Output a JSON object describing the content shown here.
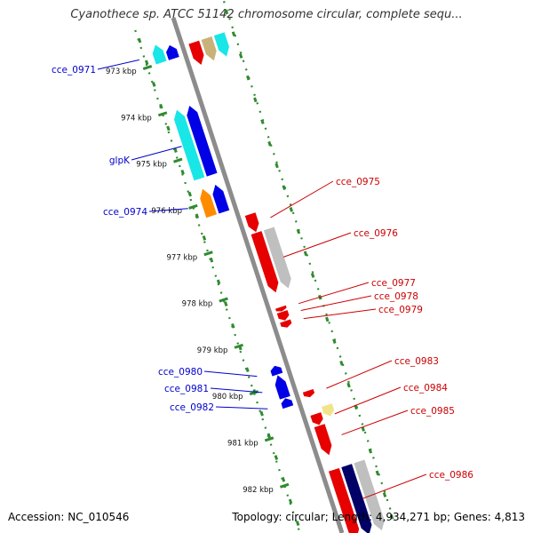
{
  "header": {
    "title": "Cyanothece sp. ATCC 51142 chromosome circular, complete sequ..."
  },
  "footer": {
    "accession": "Accession: NC_010546",
    "topology": "Topology: circular; Length: 4,934,271 bp; Genes: 4,813"
  },
  "colors": {
    "axis_line": "#8c8c8c",
    "track_dots": "#2e8b2e",
    "left_label": "#0000cc",
    "right_label": "#cc0000",
    "cyan": "#19e6e6",
    "blue": "#0000e6",
    "navy": "#000066",
    "red": "#e60000",
    "orange": "#ff8c00",
    "gray": "#bfbfbf",
    "tan": "#c8b27a",
    "khaki": "#f0e38a"
  },
  "scale": {
    "ticks": [
      {
        "kbp": 973,
        "label": "973 kbp"
      },
      {
        "kbp": 974,
        "label": "974 kbp"
      },
      {
        "kbp": 975,
        "label": "975 kbp"
      },
      {
        "kbp": 976,
        "label": "976 kbp"
      },
      {
        "kbp": 977,
        "label": "977 kbp"
      },
      {
        "kbp": 978,
        "label": "978 kbp"
      },
      {
        "kbp": 979,
        "label": "979 kbp"
      },
      {
        "kbp": 980,
        "label": "980 kbp"
      },
      {
        "kbp": 981,
        "label": "981 kbp"
      },
      {
        "kbp": 982,
        "label": "982 kbp"
      }
    ]
  },
  "genes_left": [
    {
      "label": "cce_0971",
      "kbp_start": 972.6,
      "kbp_end": 973.0,
      "color": "cyan",
      "lane": 2
    },
    {
      "label": "",
      "kbp_start": 972.7,
      "kbp_end": 973.0,
      "color": "blue",
      "lane": 1
    },
    {
      "label": "",
      "kbp_start": 974.0,
      "kbp_end": 975.5,
      "color": "cyan",
      "lane": 2
    },
    {
      "label": "glpK",
      "kbp_start": 974.0,
      "kbp_end": 975.5,
      "color": "blue",
      "lane": 1
    },
    {
      "label": "cce_0974",
      "kbp_start": 975.7,
      "kbp_end": 976.3,
      "color": "orange",
      "lane": 2
    },
    {
      "label": "",
      "kbp_start": 975.7,
      "kbp_end": 976.3,
      "color": "blue",
      "lane": 1
    },
    {
      "label": "cce_0980",
      "kbp_start": 979.6,
      "kbp_end": 979.8,
      "color": "blue",
      "lane": 1
    },
    {
      "label": "cce_0981",
      "kbp_start": 979.8,
      "kbp_end": 980.3,
      "color": "blue",
      "lane": 1
    },
    {
      "label": "cce_0982",
      "kbp_start": 980.3,
      "kbp_end": 980.5,
      "color": "blue",
      "lane": 1
    }
  ],
  "genes_right": [
    {
      "label": "",
      "kbp_start": 972.8,
      "kbp_end": 973.3,
      "color": "red",
      "lane": 1
    },
    {
      "label": "",
      "kbp_start": 972.8,
      "kbp_end": 973.3,
      "color": "tan",
      "lane": 2
    },
    {
      "label": "",
      "kbp_start": 972.8,
      "kbp_end": 973.3,
      "color": "cyan",
      "lane": 3
    },
    {
      "label": "cce_0975",
      "kbp_start": 976.5,
      "kbp_end": 976.9,
      "color": "red",
      "lane": 1
    },
    {
      "label": "cce_0976",
      "kbp_start": 976.9,
      "kbp_end": 978.2,
      "color": "red",
      "lane": 1
    },
    {
      "label": "",
      "kbp_start": 976.9,
      "kbp_end": 978.2,
      "color": "gray",
      "lane": 2
    },
    {
      "label": "cce_0977",
      "kbp_start": 978.5,
      "kbp_end": 978.6,
      "color": "red",
      "lane": 1
    },
    {
      "label": "cce_0978",
      "kbp_start": 978.6,
      "kbp_end": 978.8,
      "color": "red",
      "lane": 1
    },
    {
      "label": "cce_0979",
      "kbp_start": 978.8,
      "kbp_end": 978.95,
      "color": "red",
      "lane": 1
    },
    {
      "label": "cce_0983",
      "kbp_start": 980.3,
      "kbp_end": 980.45,
      "color": "red",
      "lane": 1
    },
    {
      "label": "cce_0984",
      "kbp_start": 980.8,
      "kbp_end": 981.05,
      "color": "red",
      "lane": 1
    },
    {
      "label": "",
      "kbp_start": 980.7,
      "kbp_end": 980.95,
      "color": "khaki",
      "lane": 2
    },
    {
      "label": "cce_0985",
      "kbp_start": 981.05,
      "kbp_end": 981.7,
      "color": "red",
      "lane": 1
    },
    {
      "label": "cce_0986",
      "kbp_start": 982.0,
      "kbp_end": 983.5,
      "color": "red",
      "lane": 1
    },
    {
      "label": "",
      "kbp_start": 982.0,
      "kbp_end": 983.5,
      "color": "navy",
      "lane": 2
    },
    {
      "label": "",
      "kbp_start": 982.0,
      "kbp_end": 983.5,
      "color": "gray",
      "lane": 3
    }
  ]
}
